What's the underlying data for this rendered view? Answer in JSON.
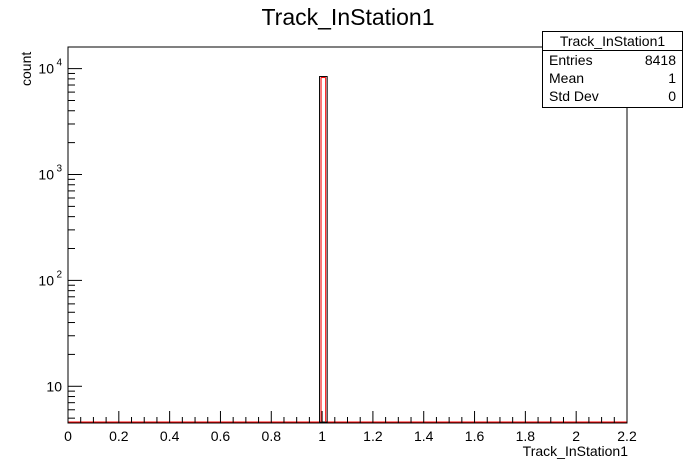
{
  "chart_data": {
    "type": "bar",
    "title": "Track_InStation1",
    "xlabel": "Track_InStation1",
    "ylabel": "count",
    "xlim": [
      0,
      2.2
    ],
    "ylog": true,
    "ylim": [
      4.5,
      16000
    ],
    "x_ticks": [
      "0",
      "0.2",
      "0.4",
      "0.6",
      "0.8",
      "1",
      "1.2",
      "1.4",
      "1.6",
      "1.8",
      "2",
      "2.2"
    ],
    "y_ticks": [
      {
        "value": 10,
        "label": "10"
      },
      {
        "value": 100,
        "label": "10",
        "exp": "2"
      },
      {
        "value": 1000,
        "label": "10",
        "exp": "3"
      },
      {
        "value": 10000,
        "label": "10",
        "exp": "4"
      }
    ],
    "bins": [
      {
        "x_low": 0.99,
        "x_high": 1.02,
        "count": 8418
      }
    ],
    "baseline_color": "#ff0000",
    "bar_edge_color": "#000000",
    "bar_fill_color": "#ffffff"
  },
  "stats": {
    "title": "Track_InStation1",
    "rows": [
      {
        "label": "Entries",
        "value": "8418"
      },
      {
        "label": "Mean",
        "value": "1"
      },
      {
        "label": "Std Dev",
        "value": "0"
      }
    ]
  }
}
